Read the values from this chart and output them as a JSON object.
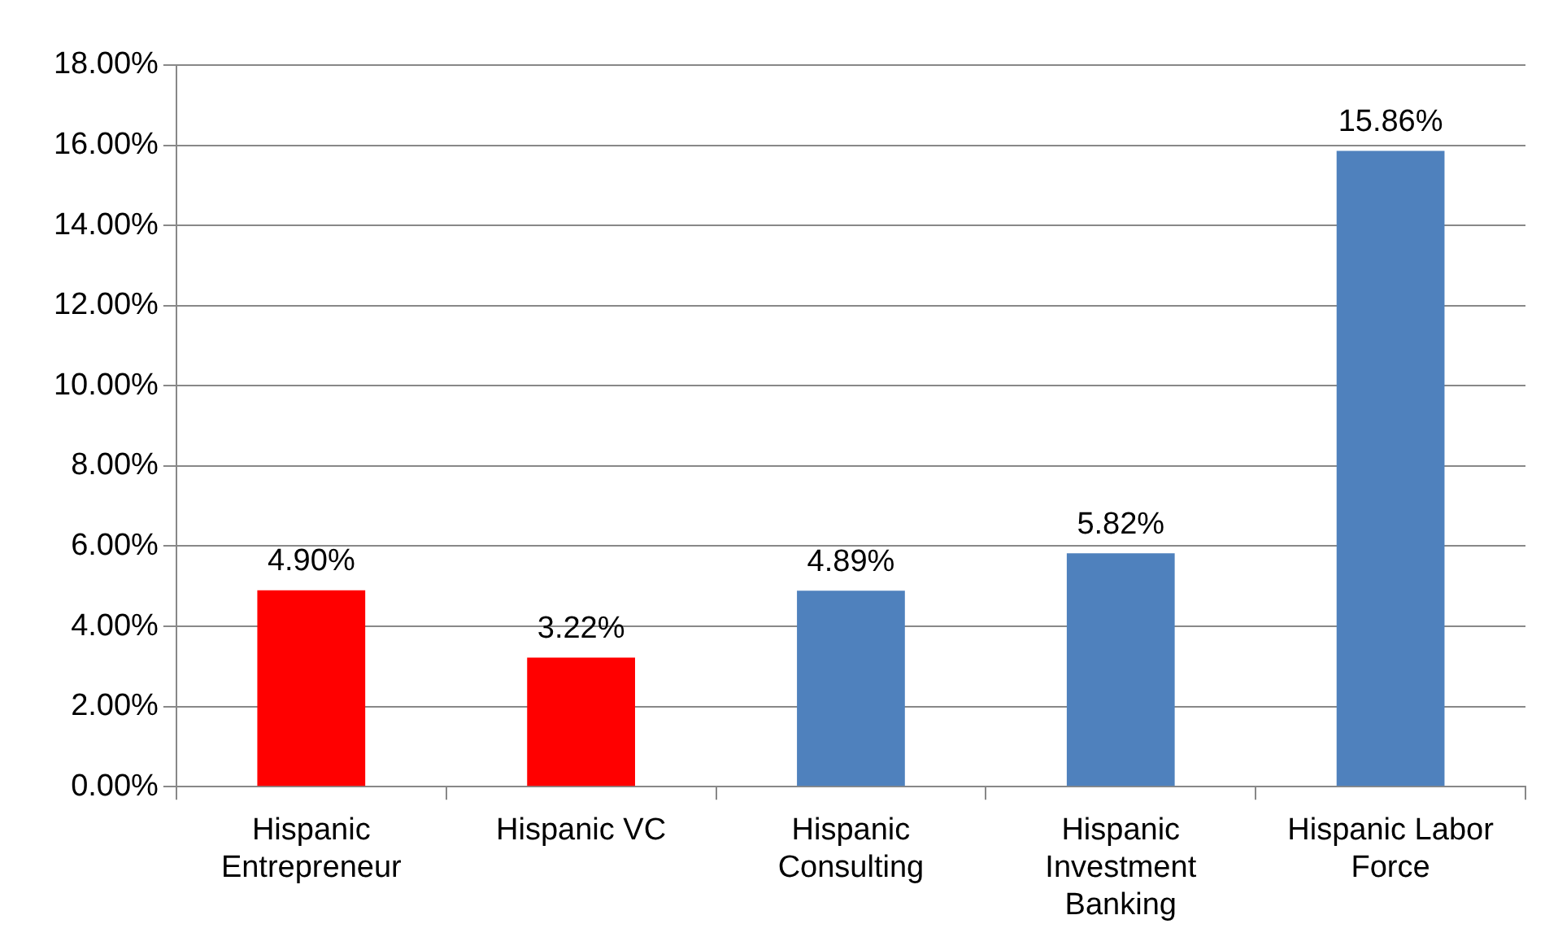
{
  "chart_data": {
    "type": "bar",
    "categories": [
      "Hispanic Entrepreneur",
      "Hispanic VC",
      "Hispanic Consulting",
      "Hispanic Investment Banking",
      "Hispanic Labor Force"
    ],
    "values": [
      4.9,
      3.22,
      4.89,
      5.82,
      15.86
    ],
    "colors": [
      "#ff0000",
      "#ff0000",
      "#4f81bd",
      "#4f81bd",
      "#4f81bd"
    ],
    "value_labels": [
      "4.90%",
      "3.22%",
      "4.89%",
      "5.82%",
      "15.86%"
    ],
    "ylim": [
      0,
      18
    ],
    "yticks": [
      {
        "value": 0,
        "label": "0.00%"
      },
      {
        "value": 2,
        "label": "2.00%"
      },
      {
        "value": 4,
        "label": "4.00%"
      },
      {
        "value": 6,
        "label": "6.00%"
      },
      {
        "value": 8,
        "label": "8.00%"
      },
      {
        "value": 10,
        "label": "10.00%"
      },
      {
        "value": 12,
        "label": "12.00%"
      },
      {
        "value": 14,
        "label": "14.00%"
      },
      {
        "value": 16,
        "label": "16.00%"
      },
      {
        "value": 18,
        "label": "18.00%"
      }
    ],
    "grid": "y",
    "legend": false
  }
}
